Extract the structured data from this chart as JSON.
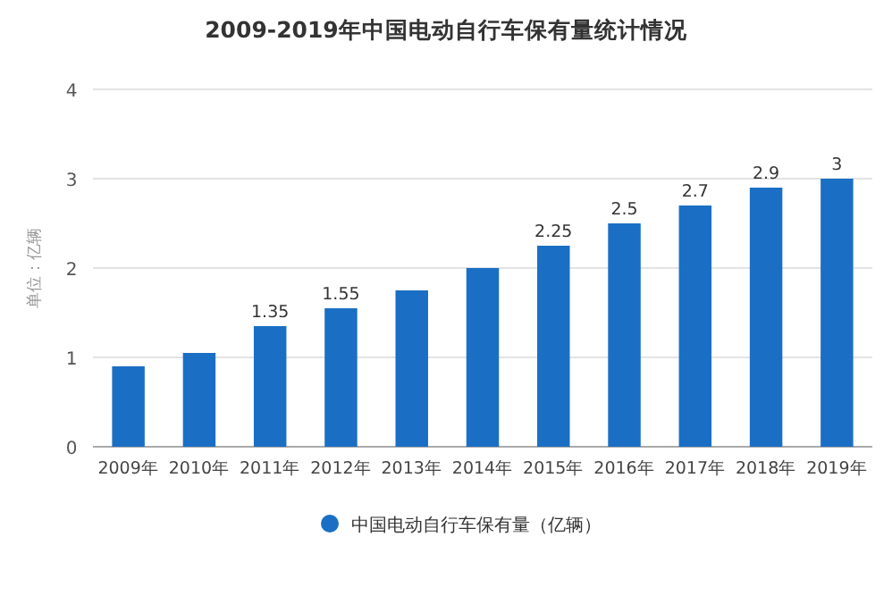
{
  "chart_data": {
    "type": "bar",
    "title": "2009-2019年中国电动自行车保有量统计情况",
    "ylabel": "单位：亿辆",
    "categories": [
      "2009年",
      "2010年",
      "2011年",
      "2012年",
      "2013年",
      "2014年",
      "2015年",
      "2016年",
      "2017年",
      "2018年",
      "2019年"
    ],
    "series": [
      {
        "name": "中国电动自行车保有量（亿辆）",
        "color": "#1a6fc4",
        "values": [
          0.9,
          1.05,
          1.35,
          1.55,
          1.75,
          2.0,
          2.25,
          2.5,
          2.7,
          2.9,
          3
        ],
        "value_labels": [
          null,
          null,
          "1.35",
          "1.55",
          null,
          null,
          "2.25",
          "2.5",
          "2.7",
          "2.9",
          "3"
        ]
      }
    ],
    "ylim": [
      0,
      4
    ],
    "yticks": [
      0,
      1,
      2,
      3,
      4
    ],
    "grid": "y",
    "legend": "bottom"
  }
}
